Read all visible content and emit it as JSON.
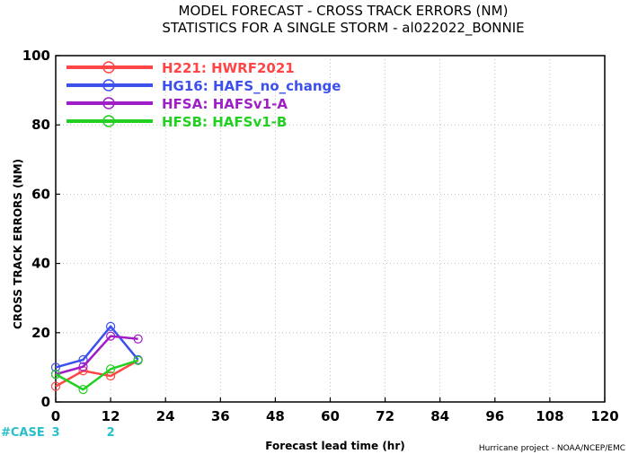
{
  "title": {
    "line1": "MODEL FORECAST - CROSS TRACK ERRORS (NM)",
    "line2": "STATISTICS FOR A SINGLE STORM - al022022_BONNIE"
  },
  "credit": "Hurricane project - NOAA/NCEP/EMC",
  "cases": {
    "label": "#CASE",
    "color": "#27c0c8",
    "entries": [
      {
        "x": 0,
        "value": "3"
      },
      {
        "x": 12,
        "value": "2"
      }
    ]
  },
  "chart_data": {
    "type": "line",
    "title": "MODEL FORECAST - CROSS TRACK ERRORS (NM)",
    "subtitle": "STATISTICS FOR A SINGLE STORM - al022022_BONNIE",
    "xlabel": "Forecast lead time (hr)",
    "ylabel": "CROSS TRACK ERRORS (NM)",
    "xlim": [
      0,
      120
    ],
    "ylim": [
      0,
      100
    ],
    "xticks": [
      0,
      12,
      24,
      36,
      48,
      60,
      72,
      84,
      96,
      108,
      120
    ],
    "yticks": [
      0,
      20,
      40,
      60,
      80,
      100
    ],
    "grid": true,
    "legend_position": "top-left",
    "series": [
      {
        "name": "H221: HWRF2021",
        "color": "#ff4646",
        "points": [
          [
            0,
            4.5
          ],
          [
            6,
            9
          ],
          [
            12,
            7.5
          ],
          [
            18,
            12
          ]
        ]
      },
      {
        "name": "HG16: HAFS_no_change",
        "color": "#3c50ee",
        "points": [
          [
            0,
            10
          ],
          [
            6,
            12.2
          ],
          [
            12,
            21.8
          ],
          [
            18,
            12.2
          ]
        ]
      },
      {
        "name": "HFSA: HAFSv1-A",
        "color": "#a01ec8",
        "points": [
          [
            0,
            8
          ],
          [
            6,
            10.2
          ],
          [
            12,
            19
          ],
          [
            18,
            18.2
          ]
        ]
      },
      {
        "name": "HFSB: HAFSv1-B",
        "color": "#22d022",
        "points": [
          [
            0,
            8
          ],
          [
            6,
            3.6
          ],
          [
            12,
            9.5
          ],
          [
            18,
            12
          ]
        ]
      }
    ]
  }
}
